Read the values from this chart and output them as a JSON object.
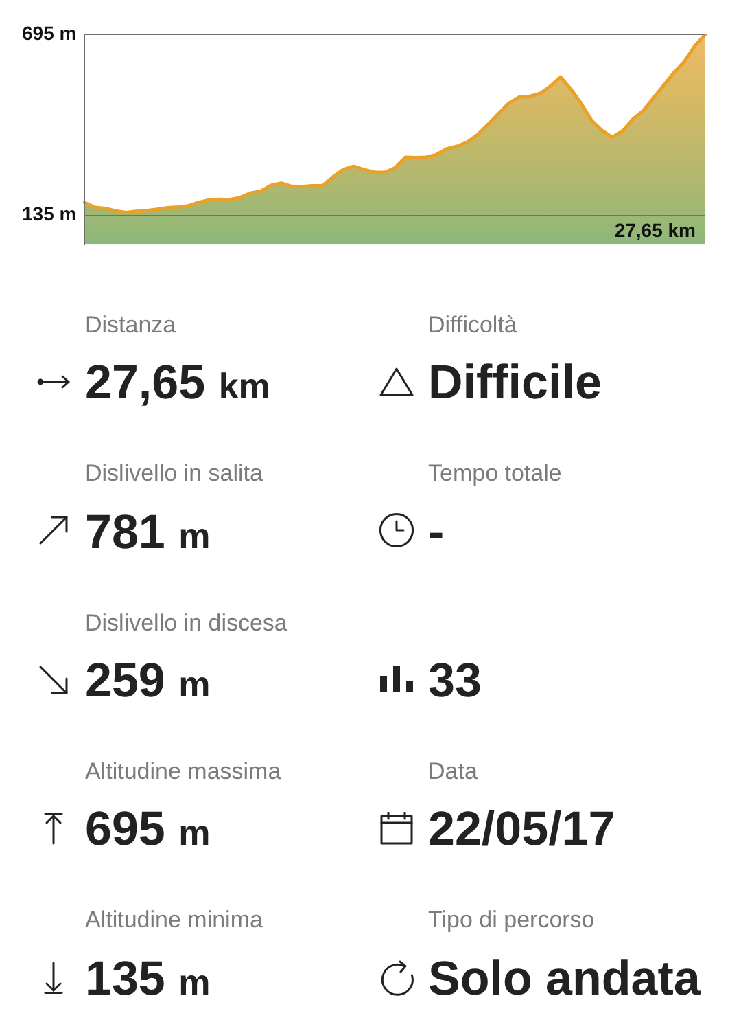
{
  "chart_data": [
    {
      "type": "area",
      "color": "#e9a127",
      "categories": [
        null,
        null,
        null,
        null,
        null,
        null,
        null,
        null,
        null,
        null,
        null,
        null,
        null,
        null,
        null,
        null,
        null,
        null,
        null,
        null,
        null,
        null,
        null,
        null,
        null,
        null,
        null,
        null,
        null,
        null,
        null,
        null,
        null,
        null,
        null,
        null,
        null,
        null,
        null,
        null,
        null,
        null,
        null,
        null,
        null,
        null,
        null,
        null,
        null,
        null,
        null,
        null,
        null,
        null,
        null,
        null,
        null,
        null,
        null,
        null,
        null
      ],
      "values": [
        175,
        160,
        157,
        149,
        144,
        148,
        150,
        154,
        159,
        161,
        165,
        175,
        183,
        185,
        184,
        190,
        204,
        210,
        228,
        235,
        225,
        224,
        227,
        227,
        254,
        277,
        287,
        277,
        269,
        268,
        282,
        315,
        314,
        315,
        323,
        341,
        349,
        362,
        385,
        417,
        449,
        482,
        501,
        503,
        512,
        534,
        563,
        526,
        481,
        429,
        398,
        377,
        396,
        433,
        459,
        499,
        538,
        578,
        612,
        660,
        695
      ],
      "ylim": [
        47,
        695
      ],
      "yticks": [
        {
          "value": 695,
          "label": "695 m"
        },
        {
          "value": 135,
          "label": "135 m"
        }
      ],
      "grid": "y",
      "annotations": [
        "27,65 km"
      ]
    },
    {
      "type": "other",
      "categories": [
        "Distanza",
        "Difficoltà",
        "Dislivello in salita",
        "Tempo totale",
        "Dislivello in discesa",
        null,
        "Altitudine massima",
        "Data",
        "Altitudine minima",
        "Tipo di percorso"
      ],
      "value_labels": [
        "27,65 km",
        "Difficile",
        "781 m",
        "-",
        "259 m",
        "33",
        "695 m",
        "22/05/17",
        "135 m",
        "Solo andata"
      ]
    }
  ]
}
